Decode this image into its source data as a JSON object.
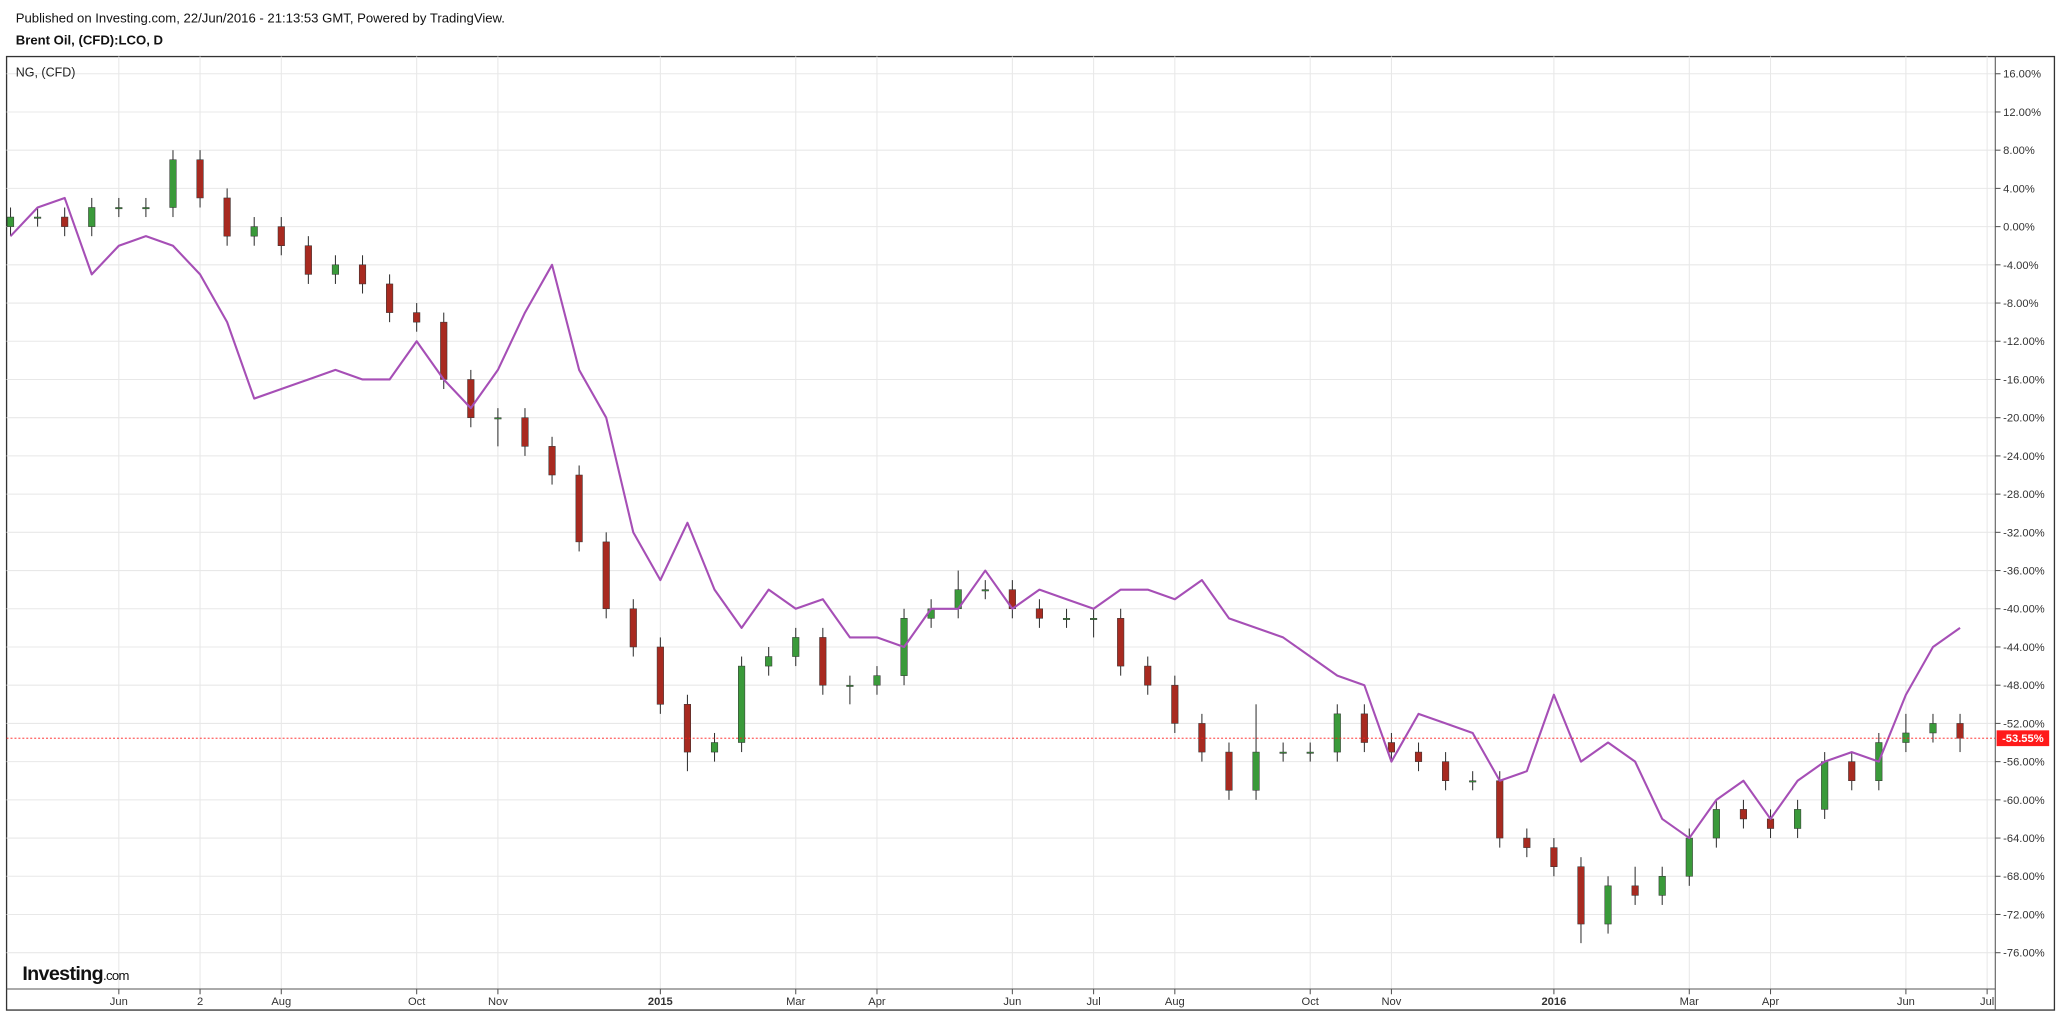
{
  "chart_data": {
    "type": "candlestick",
    "header": "Published on Investing.com, 22/Jun/2016 - 21:13:53 GMT, Powered by TradingView.",
    "title": "Brent Oil, (CFD):LCO, D",
    "categories": [
      null,
      null,
      null,
      null,
      "Jun",
      null,
      null,
      "2",
      null,
      null,
      "Aug",
      null,
      null,
      null,
      null,
      "Oct",
      null,
      null,
      "Nov",
      null,
      null,
      null,
      null,
      null,
      "2015",
      null,
      null,
      null,
      null,
      "Mar",
      null,
      null,
      "Apr",
      null,
      null,
      null,
      null,
      "Jun",
      null,
      null,
      "Jul",
      null,
      null,
      "Aug",
      null,
      null,
      null,
      null,
      "Oct",
      null,
      null,
      "Nov",
      null,
      null,
      null,
      null,
      null,
      "2016",
      null,
      null,
      null,
      null,
      "Mar",
      null,
      null,
      "Apr",
      null,
      null,
      null,
      null,
      "Jun",
      null,
      null,
      "Jul"
    ],
    "series": [
      {
        "type": "candlestick",
        "up_color": "#3a9a3a",
        "down_color": "#a82a20",
        "open": [
          0,
          1,
          1,
          0,
          2,
          2,
          2,
          7,
          3,
          -1,
          0,
          -2,
          -5,
          -4,
          -6,
          -9,
          -10,
          -16,
          -20,
          -20,
          -23,
          -26,
          -33,
          -40,
          -44,
          -50,
          -55,
          -54,
          -46,
          -45,
          -43,
          -48,
          -48,
          -47,
          -41,
          -40,
          -38,
          -38,
          -40,
          -41,
          -41,
          -41,
          -46,
          -48,
          -52,
          -55,
          -59,
          -55,
          -55,
          -55,
          -51,
          -54,
          -55,
          -56,
          -58,
          -58,
          -64,
          -65,
          -67,
          -73,
          -69,
          -70,
          -68,
          -64,
          -61,
          -62,
          -63,
          -61,
          -56,
          -58,
          -54,
          -53,
          -52,
          null
        ],
        "high": [
          2,
          2,
          2,
          3,
          3,
          3,
          8,
          8,
          4,
          1,
          1,
          -1,
          -3,
          -3,
          -5,
          -8,
          -9,
          -15,
          -19,
          -19,
          -22,
          -25,
          -32,
          -39,
          -43,
          -49,
          -53,
          -45,
          -44,
          -42,
          -42,
          -47,
          -46,
          -40,
          -39,
          -36,
          -37,
          -37,
          -39,
          -40,
          -40,
          -40,
          -45,
          -47,
          -51,
          -54,
          -50,
          -54,
          -54,
          -50,
          -50,
          -53,
          -54,
          -55,
          -57,
          -57,
          -63,
          -64,
          -66,
          -68,
          -67,
          -67,
          -63,
          -60,
          -60,
          -61,
          -60,
          -55,
          -55,
          -53,
          -51,
          -51,
          -51,
          null
        ],
        "low": [
          -1,
          0,
          -1,
          -1,
          1,
          1,
          1,
          2,
          -2,
          -2,
          -3,
          -6,
          -6,
          -7,
          -10,
          -11,
          -17,
          -21,
          -23,
          -24,
          -27,
          -34,
          -41,
          -45,
          -51,
          -57,
          -56,
          -55,
          -47,
          -46,
          -49,
          -50,
          -49,
          -48,
          -42,
          -41,
          -39,
          -41,
          -42,
          -42,
          -43,
          -47,
          -49,
          -53,
          -56,
          -60,
          -60,
          -56,
          -56,
          -56,
          -55,
          -56,
          -57,
          -59,
          -59,
          -65,
          -66,
          -68,
          -75,
          -74,
          -71,
          -71,
          -69,
          -65,
          -63,
          -64,
          -64,
          -62,
          -59,
          -59,
          -55,
          -54,
          -55,
          null
        ],
        "close": [
          1,
          1,
          0,
          2,
          2,
          2,
          7,
          3,
          -1,
          0,
          -2,
          -5,
          -4,
          -6,
          -9,
          -10,
          -16,
          -20,
          -20,
          -23,
          -26,
          -33,
          -40,
          -44,
          -50,
          -55,
          -54,
          -46,
          -45,
          -43,
          -48,
          -48,
          -47,
          -41,
          -40,
          -38,
          -38,
          -40,
          -41,
          -41,
          -41,
          -46,
          -48,
          -52,
          -55,
          -59,
          -55,
          -55,
          -55,
          -51,
          -54,
          -55,
          -56,
          -58,
          -58,
          -64,
          -65,
          -67,
          -73,
          -69,
          -70,
          -68,
          -64,
          -61,
          -62,
          -63,
          -61,
          -56,
          -58,
          -54,
          -53,
          -52,
          -53.55,
          null
        ]
      },
      {
        "type": "line",
        "name": "NG,  (CFD)",
        "color": "#a64fb6",
        "values": [
          -1,
          2,
          3,
          -5,
          -2,
          -1,
          -2,
          -5,
          -10,
          -18,
          -17,
          -16,
          -15,
          -16,
          -16,
          -12,
          -16,
          -19,
          -15,
          -9,
          -4,
          -15,
          -20,
          -32,
          -37,
          -31,
          -38,
          -42,
          -38,
          -40,
          -39,
          -43,
          -43,
          -44,
          -40,
          -40,
          -36,
          -40,
          -38,
          -39,
          -40,
          -38,
          -38,
          -39,
          -37,
          -41,
          -42,
          -43,
          -45,
          -47,
          -48,
          -56,
          -51,
          -52,
          -53,
          -58,
          -57,
          -49,
          -56,
          -54,
          -56,
          -62,
          -64,
          -60,
          -58,
          -62,
          -58,
          -56,
          -55,
          -56,
          -49,
          -44,
          -42,
          null
        ]
      }
    ],
    "ylim": [
      -79.8,
      17.8
    ],
    "yticks": [
      {
        "value": 16,
        "label": "16.00%"
      },
      {
        "value": 12,
        "label": "12.00%"
      },
      {
        "value": 8,
        "label": "8.00%"
      },
      {
        "value": 4,
        "label": "4.00%"
      },
      {
        "value": 0,
        "label": "0.00%"
      },
      {
        "value": -4,
        "label": "-4.00%"
      },
      {
        "value": -8,
        "label": "-8.00%"
      },
      {
        "value": -12,
        "label": "-12.00%"
      },
      {
        "value": -16,
        "label": "-16.00%"
      },
      {
        "value": -20,
        "label": "-20.00%"
      },
      {
        "value": -24,
        "label": "-24.00%"
      },
      {
        "value": -28,
        "label": "-28.00%"
      },
      {
        "value": -32,
        "label": "-32.00%"
      },
      {
        "value": -36,
        "label": "-36.00%"
      },
      {
        "value": -40,
        "label": "-40.00%"
      },
      {
        "value": -44,
        "label": "-44.00%"
      },
      {
        "value": -48,
        "label": "-48.00%"
      },
      {
        "value": -52,
        "label": "-52.00%"
      },
      {
        "value": -56,
        "label": "-56.00%"
      },
      {
        "value": -60,
        "label": "-60.00%"
      },
      {
        "value": -64,
        "label": "-64.00%"
      },
      {
        "value": -68,
        "label": "-68.00%"
      },
      {
        "value": -72,
        "label": "-72.00%"
      },
      {
        "value": -76,
        "label": "-76.00%"
      }
    ],
    "grid": true,
    "last_value": {
      "value": -53.55,
      "label": "-53.55%",
      "color": "#ff1a1a"
    },
    "logo": {
      "name": "Investing",
      "suffix": ".com"
    }
  }
}
